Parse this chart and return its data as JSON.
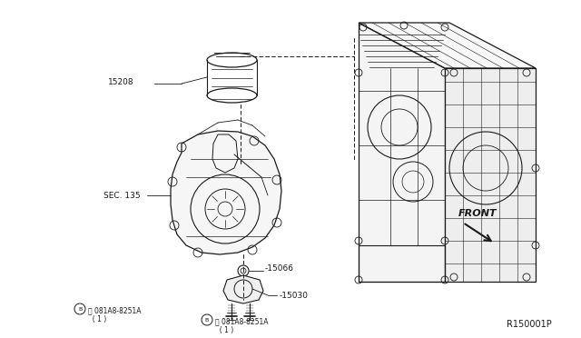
{
  "background_color": "#f0f0f0",
  "fig_width": 6.4,
  "fig_height": 3.72,
  "dpi": 100,
  "labels": {
    "part_15208": "15208",
    "part_sec135": "SEC. 135",
    "part_15066": "-15066",
    "part_15030": "-15030",
    "bolt1_line1": "Ⓑ 081A8-8251A",
    "bolt1_line2": "  ( 1 )",
    "bolt2_line1": "Ⓑ 081A8-8251A",
    "bolt2_line2": "  ( 1 )",
    "front": "FRONT",
    "ref": "R150001P"
  },
  "font_size_labels": 6.5,
  "font_size_ref": 7,
  "line_color": "#1a1a1a",
  "text_color": "#1a1a1a"
}
